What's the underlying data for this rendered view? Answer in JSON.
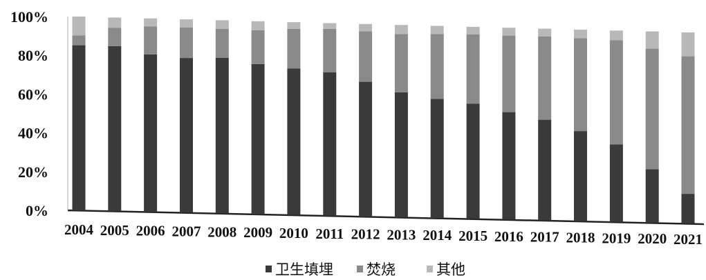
{
  "chart_data": {
    "type": "bar",
    "stacked": true,
    "categories": [
      "2004",
      "2005",
      "2006",
      "2007",
      "2008",
      "2009",
      "2010",
      "2011",
      "2012",
      "2013",
      "2014",
      "2015",
      "2016",
      "2017",
      "2018",
      "2019",
      "2020",
      "2021"
    ],
    "series": [
      {
        "name": "卫生填埋",
        "color": "#3a3a3a",
        "values": [
          85.2,
          85.2,
          81.4,
          80.0,
          80.6,
          77.8,
          76.0,
          74.5,
          70.0,
          65.0,
          62.0,
          60.0,
          56.0,
          52.5,
          47.0,
          40.5,
          28.0,
          15.5
        ]
      },
      {
        "name": "焚烧",
        "color": "#8a8a8a",
        "values": [
          5.0,
          9.5,
          14.5,
          15.8,
          15.0,
          17.5,
          20.5,
          22.5,
          26.2,
          30.3,
          33.8,
          36.0,
          40.0,
          43.5,
          48.5,
          54.5,
          63.0,
          72.0
        ]
      },
      {
        "name": "其他",
        "color": "#b8b8b8",
        "values": [
          9.8,
          5.3,
          4.1,
          4.2,
          4.4,
          4.7,
          3.5,
          3.0,
          3.8,
          4.7,
          4.2,
          4.0,
          4.0,
          4.0,
          4.5,
          5.0,
          9.0,
          12.5
        ]
      }
    ],
    "ylim": [
      0,
      100
    ],
    "yticks": [
      "0%",
      "20%",
      "40%",
      "60%",
      "80%",
      "100%"
    ],
    "legend_position": "bottom"
  }
}
